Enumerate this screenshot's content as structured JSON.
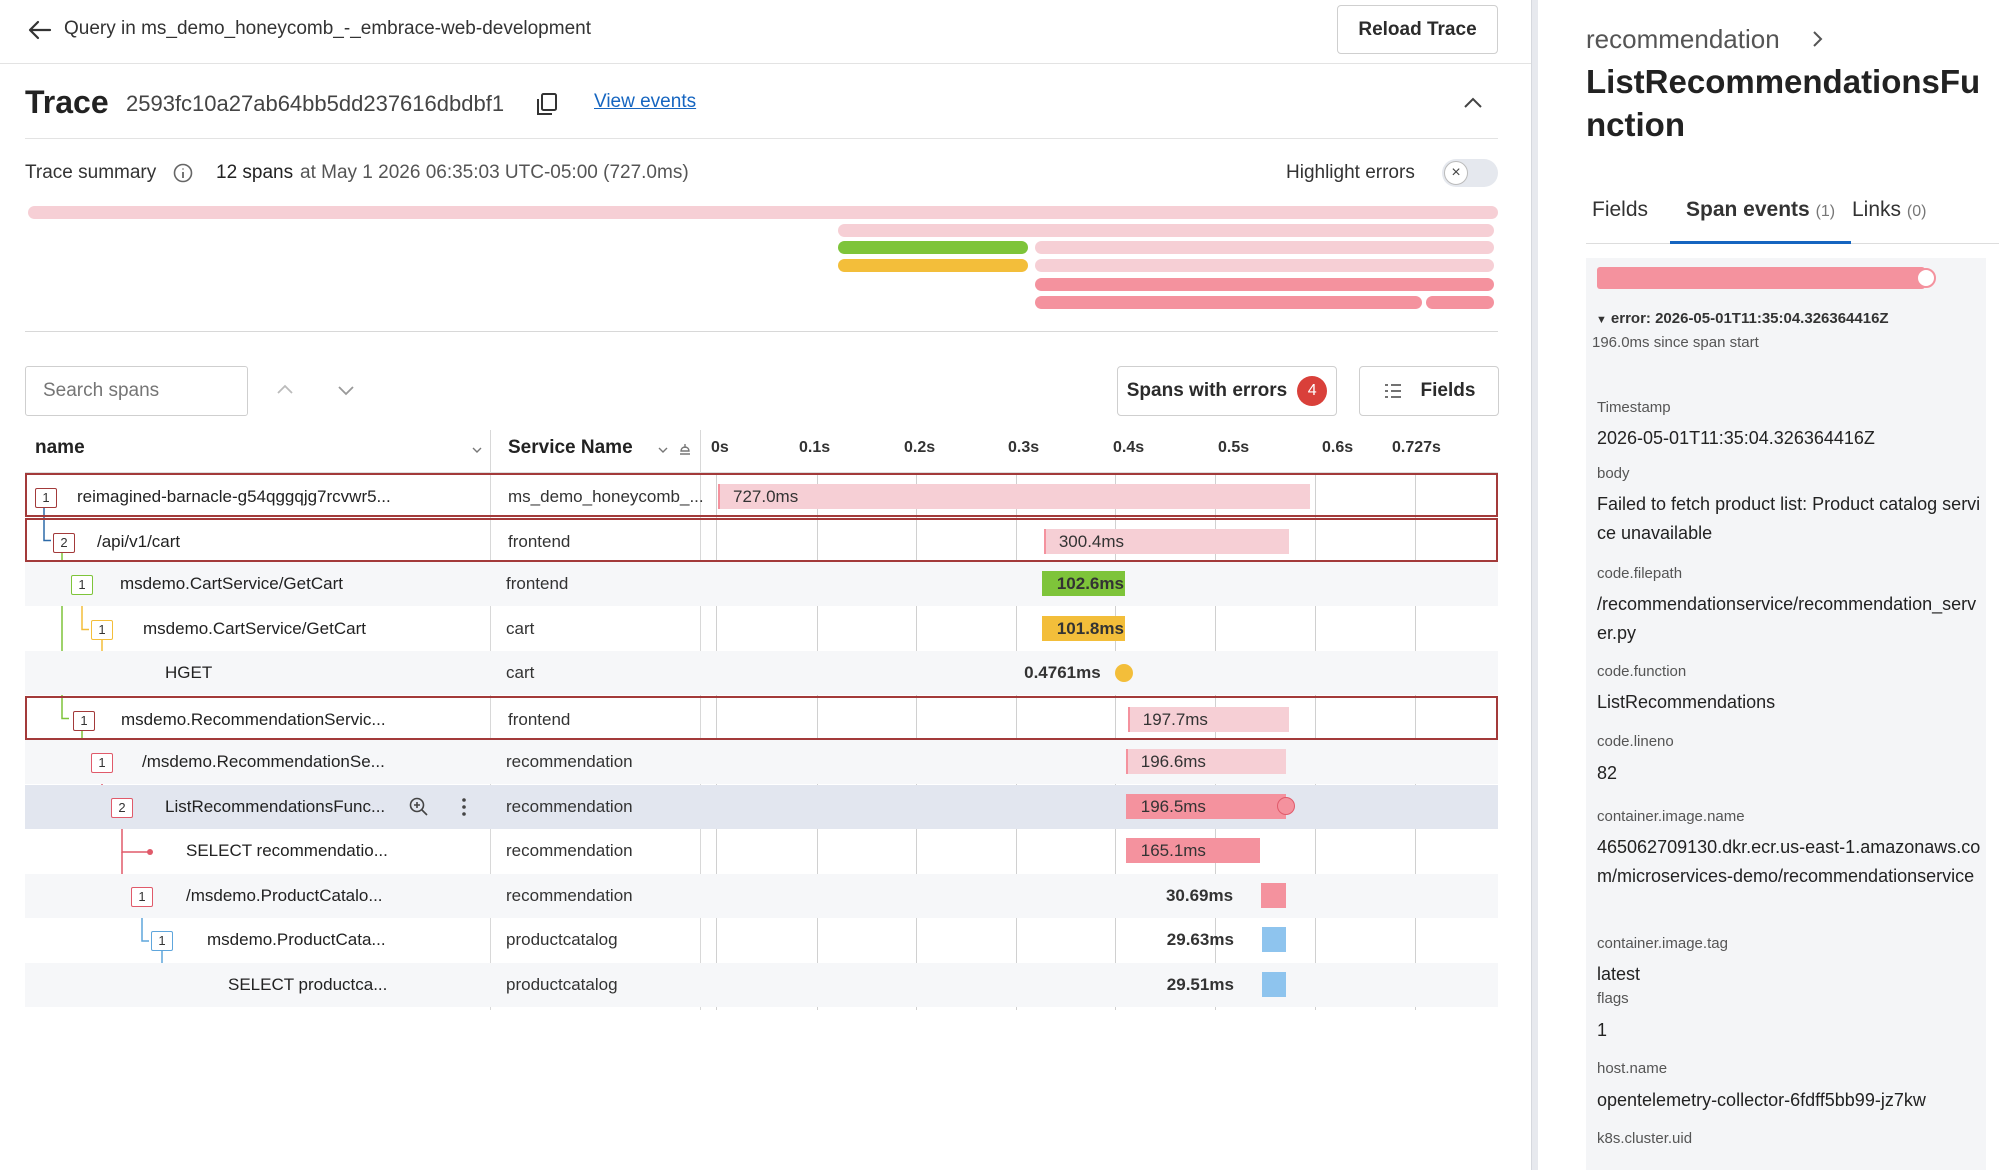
{
  "header": {
    "query_title": "Query in ms_demo_honeycomb_-_embrace-web-development",
    "reload_label": "Reload Trace"
  },
  "trace": {
    "heading": "Trace",
    "id": "2593fc10a27ab64bb5dd237616dbdbf1",
    "view_events": "View events",
    "summary_label": "Trace summary",
    "spans_count": "12 spans",
    "summary_rest": "at May 1 2026 06:35:03 UTC-05:00 (727.0ms)",
    "highlight_errors": "Highlight errors"
  },
  "toolbar": {
    "search_placeholder": "Search spans",
    "errors_label": "Spans with errors",
    "errors_count": "4",
    "fields_label": "Fields"
  },
  "table": {
    "col_name": "name",
    "col_service": "Service Name",
    "ticks": [
      "0s",
      "0.1s",
      "0.2s",
      "0.3s",
      "0.4s",
      "0.5s",
      "0.6s",
      "0.727s"
    ],
    "rows": [
      {
        "count": "1",
        "name": "reimagined-barnacle-g54qggqjg7rcvwr5...",
        "service": "ms_demo_honeycomb_...",
        "duration": "727.0ms",
        "start_ms": 0,
        "dur_ms": 727.0
      },
      {
        "count": "2",
        "name": "/api/v1/cart",
        "service": "frontend",
        "duration": "300.4ms",
        "start_ms": 400,
        "dur_ms": 300.4
      },
      {
        "count": "1",
        "name": "msdemo.CartService/GetCart",
        "service": "frontend",
        "duration": "102.6ms",
        "start_ms": 400,
        "dur_ms": 102.6
      },
      {
        "count": "1",
        "name": "msdemo.CartService/GetCart",
        "service": "cart",
        "duration": "101.8ms",
        "start_ms": 400,
        "dur_ms": 101.8
      },
      {
        "count": "",
        "name": "HGET",
        "service": "cart",
        "duration": "0.4761ms",
        "start_ms": 501,
        "dur_ms": 0.4761
      },
      {
        "count": "1",
        "name": "msdemo.RecommendationServic...",
        "service": "frontend",
        "duration": "197.7ms",
        "start_ms": 503,
        "dur_ms": 197.7
      },
      {
        "count": "1",
        "name": "/msdemo.RecommendationSe...",
        "service": "recommendation",
        "duration": "196.6ms",
        "start_ms": 503,
        "dur_ms": 196.6
      },
      {
        "count": "2",
        "name": "ListRecommendationsFunc...",
        "service": "recommendation",
        "duration": "196.5ms",
        "start_ms": 503,
        "dur_ms": 196.5
      },
      {
        "count": "",
        "name": "SELECT recommendatio...",
        "service": "recommendation",
        "duration": "165.1ms",
        "start_ms": 503,
        "dur_ms": 165.1
      },
      {
        "count": "1",
        "name": "/msdemo.ProductCatalo...",
        "service": "recommendation",
        "duration": "30.69ms",
        "start_ms": 669,
        "dur_ms": 30.69
      },
      {
        "count": "1",
        "name": "msdemo.ProductCata...",
        "service": "productcatalog",
        "duration": "29.63ms",
        "start_ms": 670,
        "dur_ms": 29.63
      },
      {
        "count": "",
        "name": "SELECT productca...",
        "service": "productcatalog",
        "duration": "29.51ms",
        "start_ms": 670,
        "dur_ms": 29.51
      }
    ]
  },
  "colors": {
    "error_pink": "#f4929e",
    "error_pink_light": "#f6cfd5",
    "frontend_green": "#7ec43a",
    "cart_yellow": "#f3be3a",
    "productcatalog_blue": "#8ec4ee",
    "error_border": "#a33a3a",
    "link_blue": "#1565c0"
  },
  "detail": {
    "breadcrumb": "recommendation",
    "title": "ListRecommendationsFunction",
    "tabs": [
      {
        "label": "Fields",
        "count": ""
      },
      {
        "label": "Span events",
        "count": "(1)"
      },
      {
        "label": "Links",
        "count": "(0)"
      }
    ],
    "event_header": "error: 2026-05-01T11:35:04.326364416Z",
    "event_since": "196.0ms since span start",
    "fields": [
      {
        "key": "Timestamp",
        "value": "2026-05-01T11:35:04.326364416Z"
      },
      {
        "key": "body",
        "value": "Failed to fetch product list: Product catalog service unavailable"
      },
      {
        "key": "code.filepath",
        "value": "/recommendationservice/recommendation_server.py"
      },
      {
        "key": "code.function",
        "value": "ListRecommendations"
      },
      {
        "key": "code.lineno",
        "value": "82"
      },
      {
        "key": "container.image.name",
        "value": "465062709130.dkr.ecr.us-east-1.amazonaws.com/microservices-demo/recommendationservice"
      },
      {
        "key": "container.image.tag",
        "value": "latest"
      },
      {
        "key": "flags",
        "value": "1"
      },
      {
        "key": "host.name",
        "value": "opentelemetry-collector-6fdff5bb99-jz7kw"
      },
      {
        "key": "k8s.cluster.uid",
        "value": ""
      }
    ]
  }
}
